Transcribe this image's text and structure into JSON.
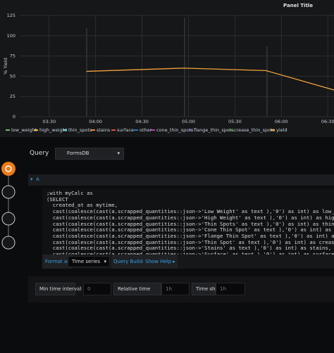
{
  "chart_data": {
    "type": "line",
    "title": "Panel Title",
    "y_label": "% Yield",
    "x": [
      "03:54",
      "04:57",
      "05:50",
      "06:34"
    ],
    "xlim": [
      "03:11",
      "06:34"
    ],
    "xticks": [
      "03:30",
      "04:00",
      "04:30",
      "05:00",
      "05:30",
      "06:00",
      "06:30"
    ],
    "ylim": [
      0,
      125
    ],
    "yticks": [
      0,
      25,
      50,
      75,
      100,
      125
    ],
    "grid": true,
    "series": [
      {
        "name": "low_weight",
        "color": "#7eb26d",
        "values": [
          null,
          null,
          null,
          null
        ]
      },
      {
        "name": "high_weight",
        "color": "#eab839",
        "values": [
          null,
          null,
          null,
          null
        ]
      },
      {
        "name": "thin_spots",
        "color": "#6ed0e0",
        "values": [
          null,
          null,
          null,
          null
        ]
      },
      {
        "name": "stains",
        "color": "#ef843c",
        "values": [
          null,
          null,
          null,
          null
        ]
      },
      {
        "name": "surface",
        "color": "#e24d42",
        "values": [
          null,
          null,
          null,
          null
        ]
      },
      {
        "name": "other",
        "color": "#1f78c1",
        "values": [
          null,
          null,
          null,
          null
        ]
      },
      {
        "name": "cone_thin_spots",
        "color": "#ba43a9",
        "values": [
          null,
          null,
          null,
          null
        ]
      },
      {
        "name": "flange_thin_spots",
        "color": "#705da0",
        "values": [
          null,
          null,
          null,
          null
        ]
      },
      {
        "name": "crease_thin_spots",
        "color": "#508642",
        "values": [
          null,
          null,
          null,
          null
        ]
      },
      {
        "name": "yield",
        "color": "#f2a33a",
        "values": [
          56,
          60,
          57,
          33
        ]
      }
    ]
  },
  "editor": {
    "query_label": "Query",
    "datasource": "FormsDB",
    "row_label": "A",
    "lines": [
      ";with myCalc as",
      "(SELECT",
      "  created_at as mytime,",
      "  cast(coalesce(cast(a.scrapped_quantities::json->'Low Weight' as text ),'0') as int) as low_weight,",
      "  cast(coalesce(cast(a.scrapped_quantities::json->'High Weight' as text ),'0') as int) as high_weight,",
      "  cast(coalesce(cast(a.scrapped_quantities::json->'Thin Spots' as text ),'0') as int) as thin_spots,",
      "  cast(coalesce(cast(a.scrapped_quantities::json->'Cone Thin Spot' as text ),'0') as int) as cone_thin_spots,",
      "  cast(coalesce(cast(a.scrapped_quantities::json->'Flange Thin Spot' as text ),'0') as int) as flange_thin_spots,",
      "  cast(coalesce(cast(a.scrapped_quantities::json->'Thin Spot' as text ),'0') as int) as crease_thin_spots,",
      "  cast(coalesce(cast(a.scrapped_quantities::json->'Stains' as text ),'0') as int) as stains,",
      "  cast(coalesce(cast(a.scrapped_quantities::json->'Surface' as text ),'0') as int) as surface,"
    ],
    "format_label": "Format as",
    "format_value": "Time series",
    "query_builder": "Query Builder",
    "show_help": "Show Help ▸",
    "min_interval_label": "Min time interval",
    "min_interval_value": "0",
    "relative_time_label": "Relative time",
    "relative_time_value": "1h",
    "time_shift_label": "Time shift",
    "time_shift_value": "1h"
  }
}
